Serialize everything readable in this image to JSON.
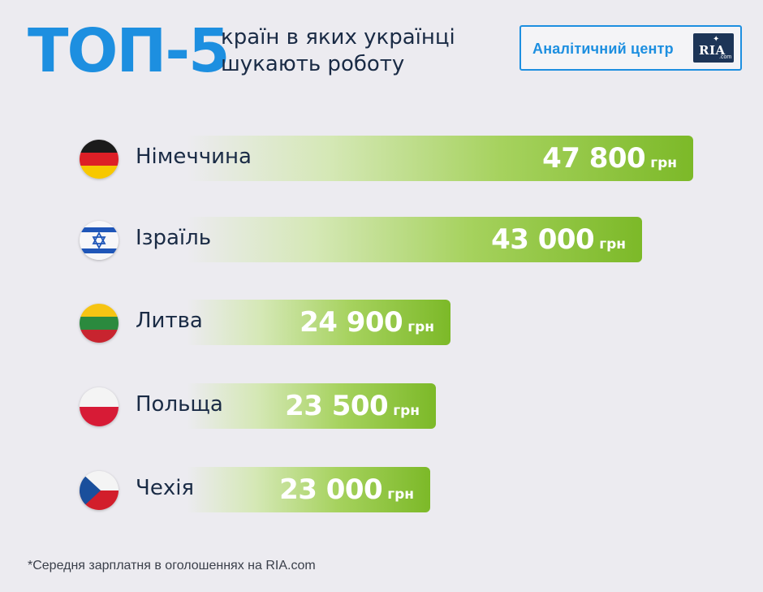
{
  "header": {
    "title": "ТОП-5",
    "subtitle_line1": "країн в яких українці",
    "subtitle_line2": "шукають роботу"
  },
  "brand": {
    "label": "Аналітичний центр",
    "logo_text": "RIA",
    "logo_suffix": ".com"
  },
  "chart_data": {
    "type": "bar",
    "orientation": "horizontal",
    "categories": [
      "Німеччина",
      "Ізраїль",
      "Литва",
      "Польща",
      "Чехія"
    ],
    "values": [
      47800,
      43000,
      24900,
      23500,
      23000
    ],
    "value_labels": [
      "47 800",
      "43 000",
      "24 900",
      "23 500",
      "23 000"
    ],
    "unit": "грн",
    "flags": [
      "germany-flag",
      "israel-flag",
      "lithuania-flag",
      "poland-flag",
      "czechia-flag"
    ],
    "colors": {
      "bar_start": "#d5e8b6",
      "bar_end": "#7cb928",
      "title": "#1d8fe0",
      "text": "#1a2b45"
    }
  },
  "footnote": "*Середня зарплатня в оголошеннях на RIA.com"
}
